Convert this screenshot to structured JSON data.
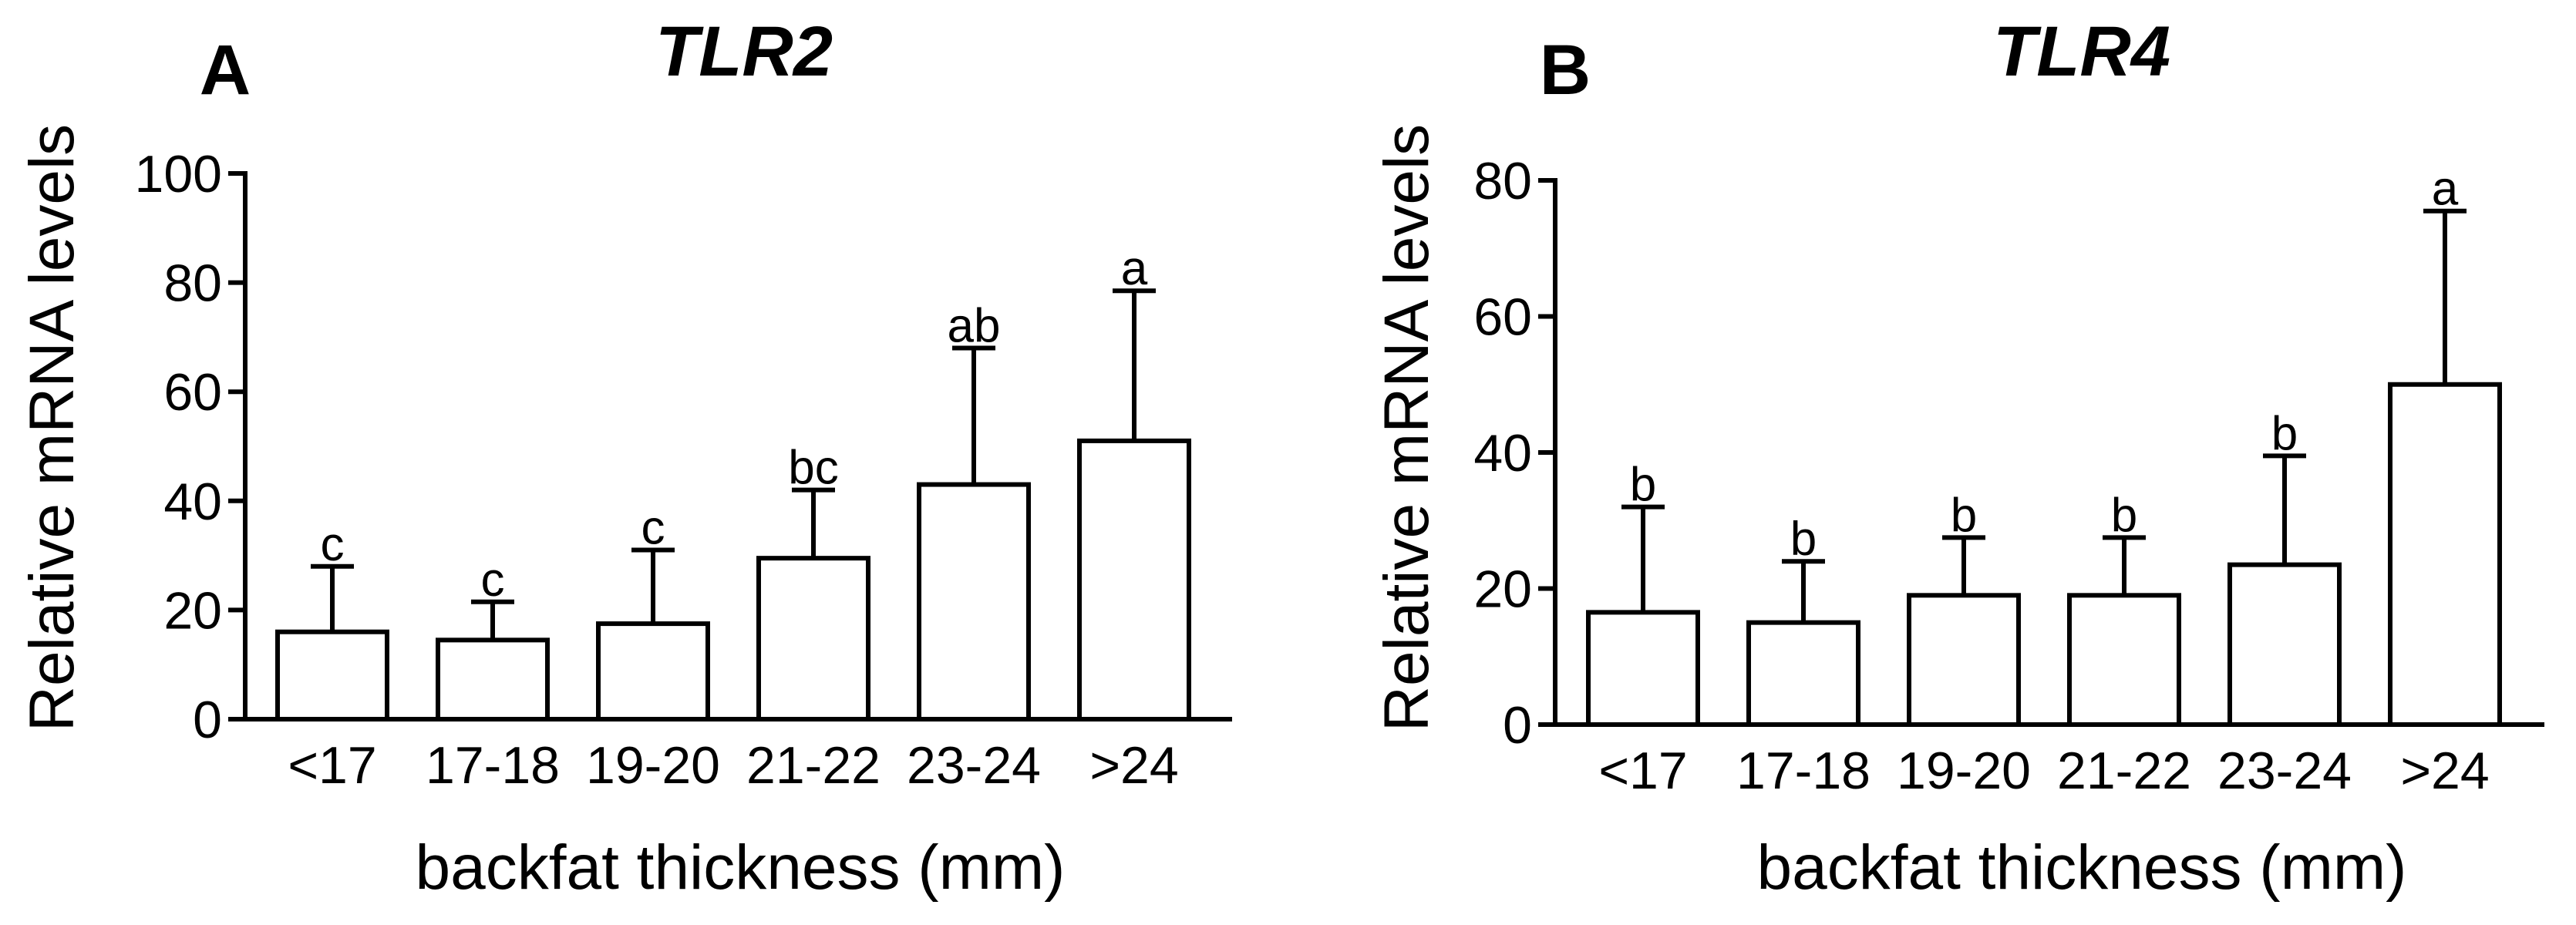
{
  "chart_data": [
    {
      "type": "bar",
      "panel": "A",
      "title": "TLR2",
      "xlabel": "backfat thickness (mm)",
      "ylabel": "Relative mRNA levels",
      "ylim": [
        0,
        100
      ],
      "yticks": [
        0,
        20,
        40,
        60,
        80,
        100
      ],
      "categories": [
        "<17",
        "17-18",
        "19-20",
        "21-22",
        "23-24",
        ">24"
      ],
      "values": [
        16,
        14.5,
        17.5,
        29.5,
        43,
        51
      ],
      "errors": [
        12,
        7,
        13.5,
        12.5,
        25,
        27.5
      ],
      "significance": [
        "c",
        "c",
        "c",
        "bc",
        "ab",
        "a"
      ]
    },
    {
      "type": "bar",
      "panel": "B",
      "title": "TLR4",
      "xlabel": "backfat thickness (mm)",
      "ylabel": "Relative mRNA levels",
      "ylim": [
        0,
        80
      ],
      "yticks": [
        0,
        20,
        40,
        60,
        80
      ],
      "categories": [
        "<17",
        "17-18",
        "19-20",
        "21-22",
        "23-24",
        ">24"
      ],
      "values": [
        16.5,
        15,
        19,
        19,
        23.5,
        50
      ],
      "errors": [
        15.5,
        9,
        8.5,
        8.5,
        16,
        25.5
      ],
      "significance": [
        "b",
        "b",
        "b",
        "b",
        "b",
        "a"
      ]
    }
  ]
}
